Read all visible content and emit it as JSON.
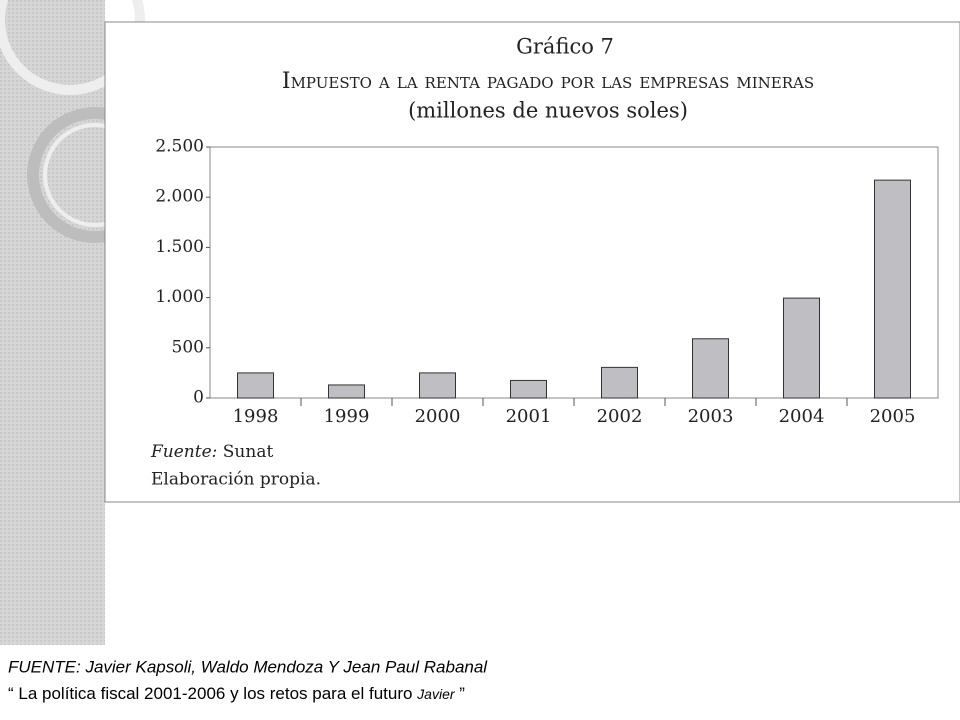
{
  "chart_data": {
    "type": "bar",
    "title": "Gráfico 7",
    "subtitle": "Impuesto a la renta pagado por las empresas mineras",
    "units": "(millones de nuevos soles)",
    "categories": [
      "1998",
      "1999",
      "2000",
      "2001",
      "2002",
      "2003",
      "2004",
      "2005"
    ],
    "values": [
      250,
      130,
      250,
      175,
      305,
      590,
      995,
      2170
    ],
    "color": "#bfbfc3",
    "ylim": [
      0,
      2500
    ],
    "yticks": [
      0,
      500,
      {
        "value": 1000,
        "label": "1.000"
      },
      {
        "value": 1500,
        "label": "1.500"
      },
      {
        "value": 2000,
        "label": "2.000"
      },
      {
        "value": 2500,
        "label": "2.500"
      }
    ],
    "grid": false,
    "source_label": "Fuente:",
    "source": "Sunat",
    "note": "Elaboración propia."
  },
  "footer": {
    "line1": "FUENTE: Javier Kapsoli, Waldo Mendoza  Y Jean Paul Rabanal",
    "line2": "“ La política fiscal 2001-2006 y los retos para el futuro ",
    "line2_italic": "Javier",
    "line2_end": " ”"
  }
}
